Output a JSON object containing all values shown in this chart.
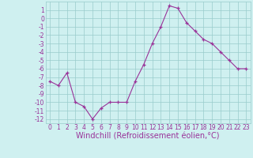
{
  "x": [
    0,
    1,
    2,
    3,
    4,
    5,
    6,
    7,
    8,
    9,
    10,
    11,
    12,
    13,
    14,
    15,
    16,
    17,
    18,
    19,
    20,
    21,
    22,
    23
  ],
  "y": [
    -7.5,
    -8.0,
    -6.5,
    -10.0,
    -10.5,
    -12.0,
    -10.7,
    -10.0,
    -10.0,
    -10.0,
    -7.5,
    -5.5,
    -3.0,
    -1.0,
    1.5,
    1.2,
    -0.5,
    -1.5,
    -2.5,
    -3.0,
    -4.0,
    -5.0,
    -6.0,
    -6.0
  ],
  "line_color": "#993399",
  "marker": "+",
  "bg_color": "#cff0f0",
  "grid_color": "#99cccc",
  "xlabel": "Windchill (Refroidissement éolien,°C)",
  "xlim": [
    -0.5,
    23.5
  ],
  "ylim": [
    -12.5,
    2.0
  ],
  "yticks": [
    1,
    0,
    -1,
    -2,
    -3,
    -4,
    -5,
    -6,
    -7,
    -8,
    -9,
    -10,
    -11,
    -12
  ],
  "xticks": [
    0,
    1,
    2,
    3,
    4,
    5,
    6,
    7,
    8,
    9,
    10,
    11,
    12,
    13,
    14,
    15,
    16,
    17,
    18,
    19,
    20,
    21,
    22,
    23
  ],
  "tick_fontsize": 5.5,
  "xlabel_fontsize": 7.0,
  "linewidth": 0.8,
  "markersize": 3.5,
  "markeredgewidth": 0.9
}
